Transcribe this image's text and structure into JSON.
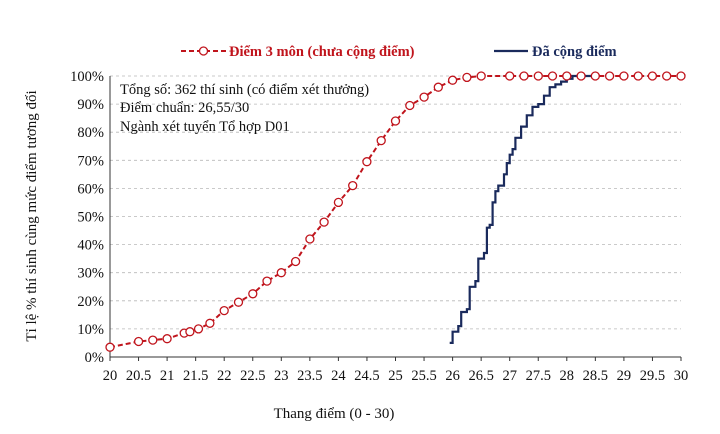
{
  "chart_data": {
    "type": "line",
    "xlabel": "Thang điểm (0 - 30)",
    "ylabel": "Tỉ lệ % thí sinh cùng mức điểm tương đối",
    "xlim": [
      20,
      30
    ],
    "ylim": [
      0,
      100
    ],
    "x_ticks": [
      "20",
      "20.5",
      "21",
      "21.5",
      "22",
      "22.5",
      "23",
      "23.5",
      "24",
      "24.5",
      "25",
      "25.5",
      "26",
      "26.5",
      "27",
      "27.5",
      "28",
      "28.5",
      "29",
      "29.5",
      "30"
    ],
    "y_ticks": [
      "0%",
      "10%",
      "20%",
      "30%",
      "40%",
      "50%",
      "60%",
      "70%",
      "80%",
      "90%",
      "100%"
    ],
    "grid": "horizontal dashed",
    "legend_position": "top",
    "annotations": [
      "Tổng số: 362 thí sinh  (có điểm xét thưởng)",
      "Điểm chuẩn: 26,55/30",
      "Ngành xét tuyển Tổ hợp D01"
    ],
    "series": [
      {
        "name": "Điểm 3 môn (chưa cộng điểm)",
        "color": "#c0141c",
        "style": "dashed-with-circle-markers",
        "points": [
          [
            20.0,
            3.5
          ],
          [
            20.5,
            5.5
          ],
          [
            20.75,
            6.0
          ],
          [
            21.0,
            6.5
          ],
          [
            21.3,
            8.5
          ],
          [
            21.4,
            9.0
          ],
          [
            21.55,
            10.0
          ],
          [
            21.75,
            12.0
          ],
          [
            22.0,
            16.5
          ],
          [
            22.25,
            19.5
          ],
          [
            22.5,
            22.5
          ],
          [
            22.75,
            27.0
          ],
          [
            23.0,
            30.0
          ],
          [
            23.25,
            34.0
          ],
          [
            23.5,
            42.0
          ],
          [
            23.75,
            48.0
          ],
          [
            24.0,
            55.0
          ],
          [
            24.25,
            61.0
          ],
          [
            24.5,
            69.5
          ],
          [
            24.75,
            77.0
          ],
          [
            25.0,
            84.0
          ],
          [
            25.25,
            89.5
          ],
          [
            25.5,
            92.5
          ],
          [
            25.75,
            96.0
          ],
          [
            26.0,
            98.5
          ],
          [
            26.25,
            99.5
          ],
          [
            26.5,
            100
          ],
          [
            27.0,
            100
          ],
          [
            27.25,
            100
          ],
          [
            27.5,
            100
          ],
          [
            27.75,
            100
          ],
          [
            28.0,
            100
          ],
          [
            28.25,
            100
          ],
          [
            28.5,
            100
          ],
          [
            28.75,
            100
          ],
          [
            29.0,
            100
          ],
          [
            29.25,
            100
          ],
          [
            29.5,
            100
          ],
          [
            29.75,
            100
          ],
          [
            30.0,
            100
          ]
        ]
      },
      {
        "name": "Đã cộng điểm",
        "color": "#1a2a5c",
        "style": "solid-step",
        "points": [
          [
            25.95,
            5
          ],
          [
            26.0,
            9
          ],
          [
            26.1,
            11
          ],
          [
            26.15,
            16
          ],
          [
            26.25,
            17
          ],
          [
            26.3,
            25
          ],
          [
            26.4,
            27
          ],
          [
            26.45,
            35
          ],
          [
            26.55,
            37
          ],
          [
            26.6,
            46
          ],
          [
            26.65,
            47
          ],
          [
            26.7,
            55
          ],
          [
            26.75,
            59
          ],
          [
            26.8,
            61
          ],
          [
            26.9,
            65
          ],
          [
            26.95,
            69
          ],
          [
            27.0,
            72
          ],
          [
            27.05,
            74
          ],
          [
            27.1,
            78
          ],
          [
            27.2,
            82
          ],
          [
            27.3,
            86
          ],
          [
            27.4,
            89
          ],
          [
            27.5,
            90
          ],
          [
            27.6,
            93
          ],
          [
            27.7,
            96
          ],
          [
            27.8,
            97
          ],
          [
            27.9,
            98
          ],
          [
            28.0,
            99
          ],
          [
            28.1,
            100
          ],
          [
            28.5,
            100
          ]
        ]
      }
    ]
  }
}
